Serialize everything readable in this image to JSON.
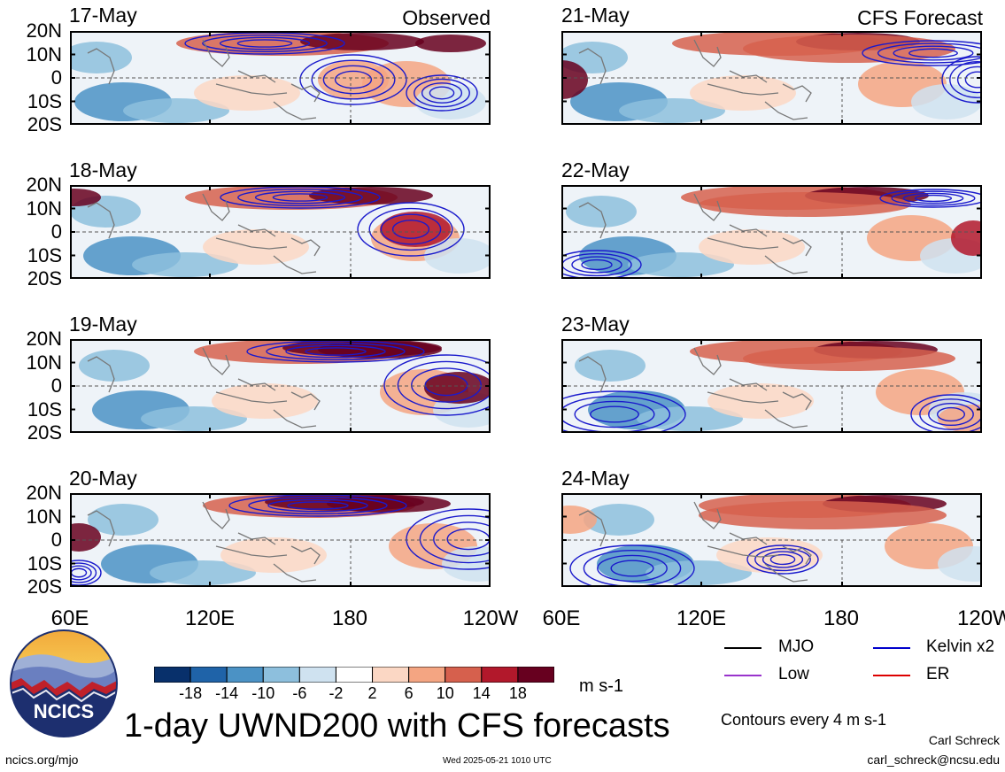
{
  "observed_label": "Observed",
  "forecast_label": "CFS Forecast",
  "latitude_labels": [
    "20N",
    "10N",
    "0",
    "10S",
    "20S"
  ],
  "longitude_labels": [
    "60E",
    "120E",
    "180",
    "120W"
  ],
  "panels_left": [
    {
      "date": "17-May"
    },
    {
      "date": "18-May"
    },
    {
      "date": "19-May"
    },
    {
      "date": "20-May"
    }
  ],
  "panels_right": [
    {
      "date": "21-May"
    },
    {
      "date": "22-May"
    },
    {
      "date": "23-May"
    },
    {
      "date": "24-May"
    }
  ],
  "colorbar": {
    "labels": [
      "-18",
      "-14",
      "-10",
      "-6",
      "-2",
      "2",
      "6",
      "10",
      "14",
      "18"
    ],
    "colors": [
      "#08306b",
      "#1f63a8",
      "#4b92c5",
      "#8dbfdd",
      "#cfe2f0",
      "#ffffff",
      "#fbd7c4",
      "#f4a582",
      "#d6604d",
      "#b2182b",
      "#67001f"
    ],
    "units": "m s-1"
  },
  "legend": [
    {
      "label": "MJO",
      "color": "#000000"
    },
    {
      "label": "Kelvin x2",
      "color": "#0000cc"
    },
    {
      "label": "Low",
      "color": "#9933cc"
    },
    {
      "label": "ER",
      "color": "#dd0000"
    }
  ],
  "contour_note": "Contours every 4 m s-1",
  "title": "1-day UWND200 with CFS forecasts",
  "logo_text": "NCICS",
  "url": "ncics.org/mjo",
  "timestamp": "Wed 2025-05-21 1010 UTC",
  "author": "Carl Schreck",
  "email": "carl_schreck@ncsu.edu"
}
